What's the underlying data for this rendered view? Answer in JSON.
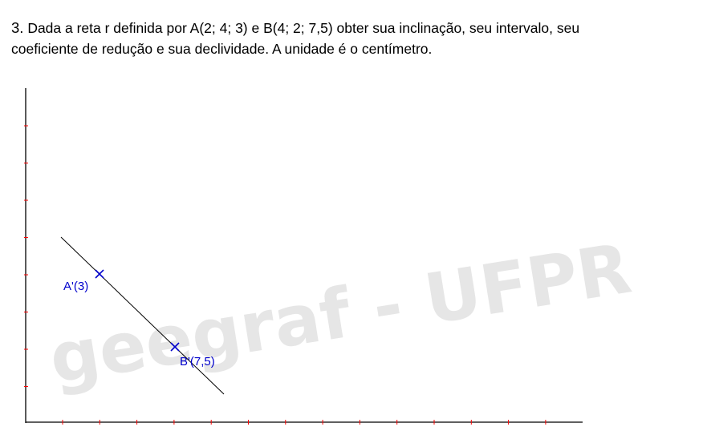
{
  "problem": {
    "number": "3.",
    "line1": "Dada a reta r definida por A(2; 4; 3) e B(4; 2; 7,5) obter sua inclinação, seu intervalo, seu",
    "line2": "coeficiente de redução e sua declividade. A unidade é o centímetro."
  },
  "watermark": "geegraf - UFPR",
  "points": [
    {
      "label": "A'(3)"
    },
    {
      "label": "B'(7,5)"
    }
  ],
  "colors": {
    "axis": "#000000",
    "ticks": "#ff0000",
    "points": "#0000cc",
    "line": "#000000",
    "watermark": "#e6e6e6"
  }
}
